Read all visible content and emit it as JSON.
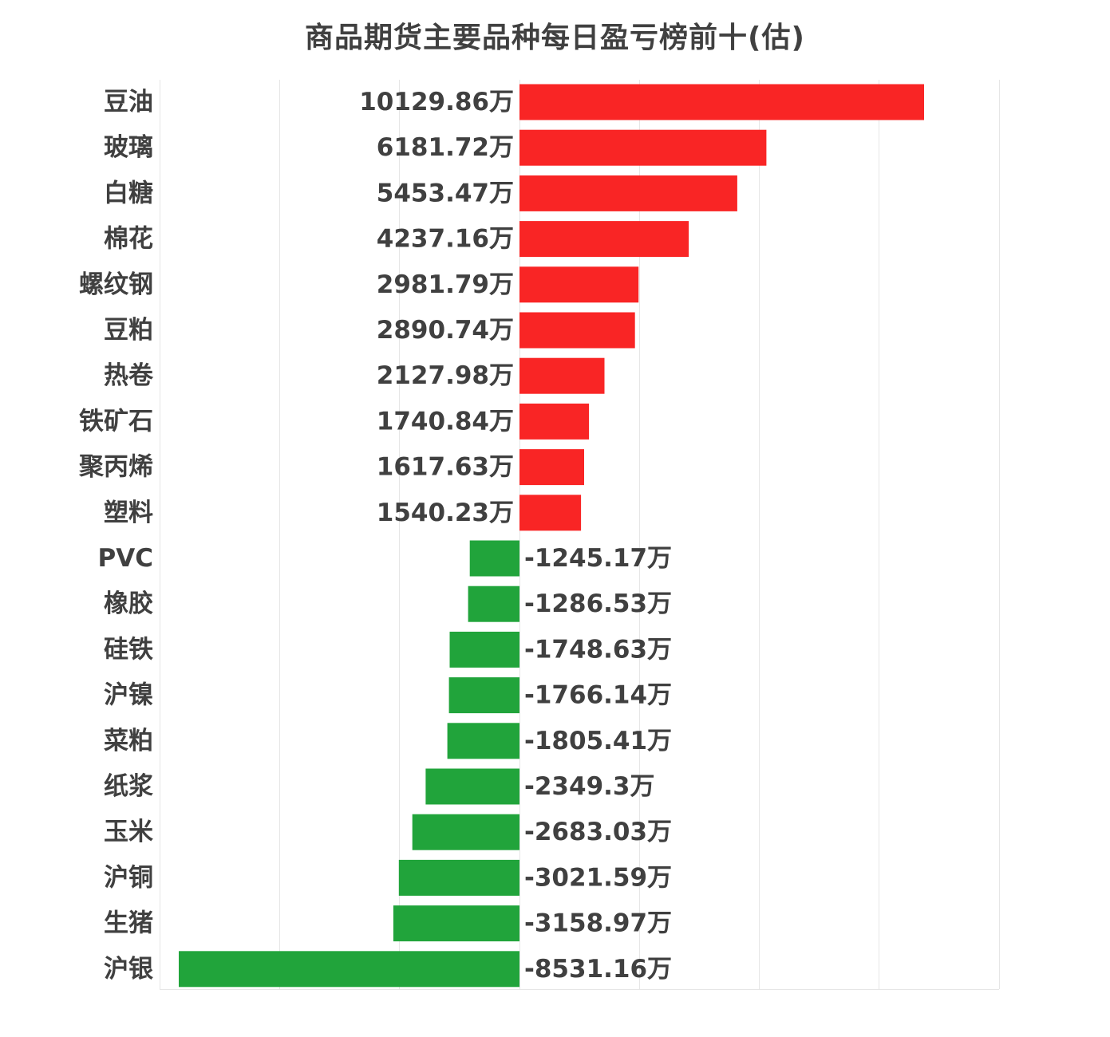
{
  "chart_data": {
    "type": "bar",
    "orientation": "horizontal",
    "title": "商品期货主要品种每日盈亏榜前十(估)",
    "xlabel": "",
    "ylabel": "",
    "xlim": [
      -10000,
      12000
    ],
    "grid": true,
    "value_suffix": "万",
    "positive_color": "#f92525",
    "negative_color": "#21a43b",
    "categories": [
      "豆油",
      "玻璃",
      "白糖",
      "棉花",
      "螺纹钢",
      "豆粕",
      "热卷",
      "铁矿石",
      "聚丙烯",
      "塑料",
      "PVC",
      "橡胶",
      "硅铁",
      "沪镍",
      "菜粕",
      "纸浆",
      "玉米",
      "沪铜",
      "生猪",
      "沪银"
    ],
    "values": [
      10129.86,
      6181.72,
      5453.47,
      4237.16,
      2981.79,
      2890.74,
      2127.98,
      1740.84,
      1617.63,
      1540.23,
      -1245.17,
      -1286.53,
      -1748.63,
      -1766.14,
      -1805.41,
      -2349.3,
      -2683.03,
      -3021.59,
      -3158.97,
      -8531.16
    ],
    "value_labels": [
      "10129.86万",
      "6181.72万",
      "5453.47万",
      "4237.16万",
      "2981.79万",
      "2890.74万",
      "2127.98万",
      "1740.84万",
      "1617.63万",
      "1540.23万",
      "-1245.17万",
      "-1286.53万",
      "-1748.63万",
      "-1766.14万",
      "-1805.41万",
      "-2349.3万",
      "-2683.03万",
      "-3021.59万",
      "-3158.97万",
      "-8531.16万"
    ]
  }
}
